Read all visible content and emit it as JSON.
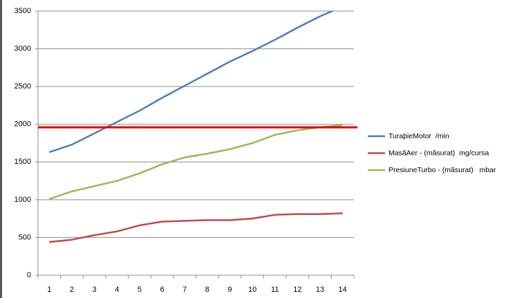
{
  "chart_data": {
    "type": "line",
    "categories": [
      "1",
      "2",
      "3",
      "4",
      "5",
      "6",
      "7",
      "8",
      "9",
      "10",
      "11",
      "12",
      "13",
      "14"
    ],
    "series": [
      {
        "name": "TuraþieMotor  /min",
        "color": "#4a7ebb",
        "values": [
          1630,
          1730,
          1880,
          2030,
          2180,
          2350,
          2510,
          2670,
          2830,
          2970,
          3120,
          3280,
          3430,
          3560
        ]
      },
      {
        "name": "MasãAer - (mãsurat)  mg/cursa",
        "color": "#be4b48",
        "values": [
          440,
          470,
          530,
          580,
          660,
          710,
          720,
          730,
          730,
          750,
          800,
          810,
          810,
          820
        ]
      },
      {
        "name": "PresiuneTurbo - (mãsurat)   mbar",
        "color": "#98b954",
        "values": [
          1010,
          1110,
          1180,
          1250,
          1350,
          1470,
          1560,
          1610,
          1670,
          1750,
          1860,
          1920,
          1960,
          1990
        ]
      }
    ],
    "hline": {
      "value": 1960,
      "color": "#e00000"
    },
    "ylim": [
      0,
      3500
    ],
    "yticks": [
      0,
      500,
      1000,
      1500,
      2000,
      2500,
      3000,
      3500
    ],
    "grid": true,
    "legend": "right"
  }
}
